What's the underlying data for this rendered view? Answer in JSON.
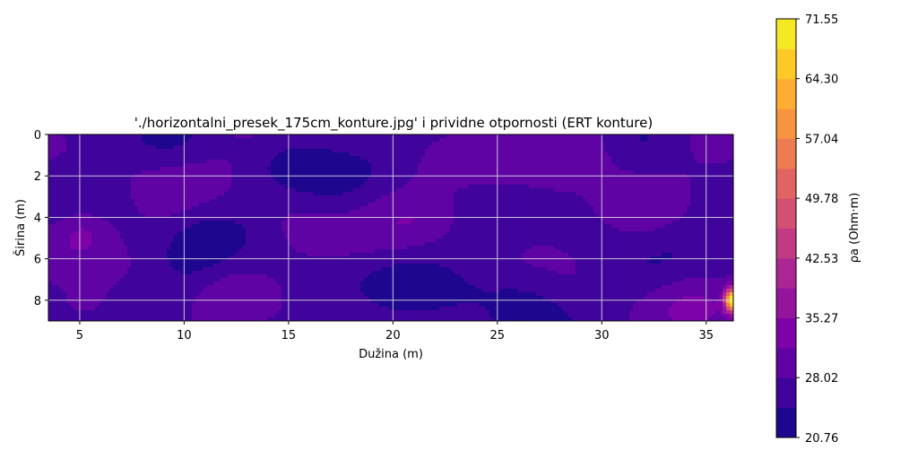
{
  "chart_data": {
    "type": "heatmap",
    "subtype": "filled-contour",
    "title": "'./horizontalni_presek_175cm_konture.jpg' i prividne otpornosti (ERT konture)",
    "xlabel": "Dužina (m)",
    "ylabel": "Širina (m)",
    "xlim": [
      3.5,
      36.3
    ],
    "ylim": [
      9,
      0
    ],
    "y_inverted": true,
    "x_ticks": [
      "5",
      "10",
      "15",
      "20",
      "25",
      "30",
      "35"
    ],
    "y_ticks": [
      "0",
      "2",
      "4",
      "6",
      "8"
    ],
    "grid": true,
    "colormap": "plasma",
    "colorbar": {
      "label": "ρa (Ohm·m)",
      "min": 20.76,
      "max": 71.55,
      "ticks": [
        "20.76",
        "28.02",
        "35.27",
        "42.53",
        "49.78",
        "57.04",
        "64.30",
        "71.55"
      ],
      "levels": 14,
      "placement": "right"
    },
    "value_range_in_map": [
      20.76,
      71.55
    ],
    "notable_features": [
      {
        "description": "hot spot (high resistivity) near right edge",
        "x": 36.1,
        "y": 8.0,
        "value": 71.5
      },
      {
        "description": "low resistivity region",
        "x": 24.0,
        "y": 7.5,
        "value": 22.5
      },
      {
        "description": "elevated zone",
        "x": 28.5,
        "y": 1.0,
        "value": 34.5
      }
    ]
  }
}
